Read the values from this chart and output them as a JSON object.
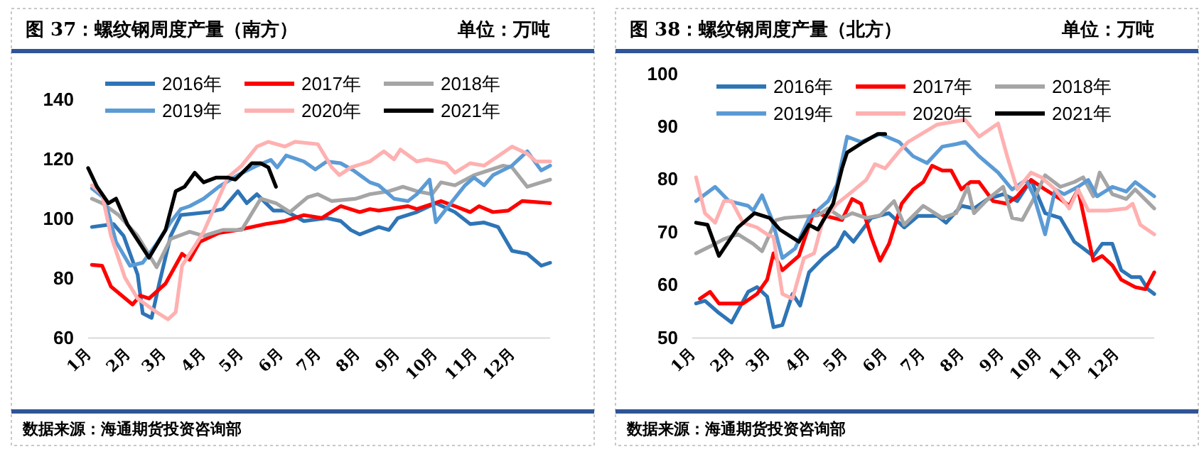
{
  "chart_data": [
    {
      "type": "line",
      "title": "图 37：螺纹钢周度产量（南方）",
      "subtitle": "单位：万吨",
      "annotations": [
        "数据来源：海通期货投资咨询部"
      ],
      "legend": "top",
      "grid": false,
      "xlim": [
        "--01-01",
        "--12-31"
      ],
      "xticks": [
        {
          "value": "--01-01",
          "label": "1月"
        },
        {
          "value": "--02-01",
          "label": "2月"
        },
        {
          "value": "--03-01",
          "label": "3月"
        },
        {
          "value": "--04-01",
          "label": "4月"
        },
        {
          "value": "--05-01",
          "label": "5月"
        },
        {
          "value": "--06-01",
          "label": "6月"
        },
        {
          "value": "--07-01",
          "label": "7月"
        },
        {
          "value": "--08-01",
          "label": "8月"
        },
        {
          "value": "--09-01",
          "label": "9月"
        },
        {
          "value": "--10-01",
          "label": "10月"
        },
        {
          "value": "--11-01",
          "label": "11月"
        },
        {
          "value": "--12-01",
          "label": "12月"
        }
      ],
      "ylim": [
        60,
        140
      ],
      "yticks": [
        60,
        80,
        100,
        120,
        140
      ],
      "series": [
        {
          "name": "2016年",
          "color": "#2e75b6",
          "x": [
            "--01-04",
            "--01-21",
            "--01-29",
            "--02-09",
            "--02-13",
            "--02-20",
            "--02-26",
            "--03-07",
            "--03-15",
            "--04-06",
            "--04-17",
            "--04-29",
            "--05-06",
            "--05-14",
            "--05-27",
            "--06-05",
            "--06-20",
            "--07-08",
            "--07-19",
            "--07-27",
            "--08-03",
            "--08-18",
            "--08-26",
            "--09-02",
            "--09-17",
            "--10-02",
            "--10-17",
            "--10-29",
            "--11-09",
            "--11-20",
            "--12-01",
            "--12-13",
            "--12-24",
            "--12-31"
          ],
          "values": [
            97,
            98,
            94,
            81,
            68,
            66.5,
            78,
            94,
            101,
            102,
            103,
            109,
            105,
            108,
            102.5,
            102.5,
            99,
            100,
            99,
            96,
            94.5,
            97,
            96,
            100,
            102,
            105,
            102,
            98,
            98.5,
            97,
            89,
            88,
            84,
            85
          ]
        },
        {
          "name": "2017年",
          "color": "#ff0000",
          "x": [
            "--01-04",
            "--01-12",
            "--01-19",
            "--02-05",
            "--02-11",
            "--02-18",
            "--03-03",
            "--03-16",
            "--03-22",
            "--03-30",
            "--04-14",
            "--04-29",
            "--05-21",
            "--06-05",
            "--06-20",
            "--07-04",
            "--07-19",
            "--08-03",
            "--08-11",
            "--08-18",
            "--09-10",
            "--09-17",
            "--10-06",
            "--10-17",
            "--10-29",
            "--11-05",
            "--11-16",
            "--11-28",
            "--12-09",
            "--12-31"
          ],
          "values": [
            84.3,
            84,
            77,
            71,
            74,
            73,
            78,
            88,
            86,
            92,
            95,
            96,
            98,
            99,
            101,
            100,
            104,
            102,
            103,
            102.5,
            104,
            103,
            105.7,
            104,
            102,
            104,
            102,
            102.5,
            105.7,
            105
          ]
        },
        {
          "name": "2018年",
          "color": "#a5a5a5",
          "x": [
            "--01-04",
            "--01-12",
            "--01-25",
            "--02-09",
            "--02-24",
            "--03-07",
            "--03-22",
            "--04-02",
            "--04-17",
            "--05-02",
            "--05-17",
            "--05-29",
            "--06-09",
            "--06-23",
            "--07-01",
            "--07-12",
            "--07-31",
            "--08-11",
            "--08-26",
            "--09-06",
            "--09-17",
            "--09-29",
            "--10-06",
            "--10-17",
            "--11-01",
            "--11-24",
            "--12-01",
            "--12-13",
            "--12-31"
          ],
          "values": [
            106.5,
            105,
            101,
            94,
            83.5,
            93,
            95.4,
            94,
            96,
            96,
            106.5,
            105,
            102,
            107,
            108,
            105.7,
            106.5,
            108,
            109,
            110.5,
            109,
            108,
            112,
            111,
            114.4,
            117.6,
            117,
            110.5,
            112.9
          ]
        },
        {
          "name": "2019年",
          "color": "#5b9bd5",
          "x": [
            "--01-04",
            "--01-14",
            "--01-23",
            "--02-03",
            "--02-13",
            "--02-24",
            "--03-07",
            "--03-15",
            "--03-22",
            "--04-02",
            "--04-14",
            "--04-29",
            "--05-14",
            "--05-25",
            "--05-30",
            "--06-06",
            "--06-20",
            "--06-29",
            "--07-08",
            "--07-19",
            "--07-29",
            "--08-11",
            "--08-18",
            "--08-30",
            "--09-10",
            "--09-17",
            "--09-27",
            "--10-02",
            "--10-10",
            "--10-25",
            "--11-01",
            "--11-09",
            "--11-16",
            "--12-01",
            "--12-13",
            "--12-24",
            "--12-31"
          ],
          "values": [
            110,
            106.5,
            92,
            84,
            85,
            91.4,
            98.6,
            103,
            104,
            106.5,
            110.5,
            114.4,
            117.6,
            119.5,
            117,
            121,
            119,
            116.3,
            119,
            118.4,
            116,
            112,
            111,
            106.5,
            105.7,
            108,
            112.9,
            98.6,
            103,
            111,
            113.6,
            111,
            114.4,
            117.6,
            122.4,
            116,
            117.6
          ]
        },
        {
          "name": "2020年",
          "color": "#ffb0b0",
          "x": [
            "--01-04",
            "--01-12",
            "--01-19",
            "--01-30",
            "--02-09",
            "--02-24",
            "--03-05",
            "--03-11",
            "--03-16",
            "--03-26",
            "--04-02",
            "--04-10",
            "--04-21",
            "--05-02",
            "--05-14",
            "--05-23",
            "--06-05",
            "--06-13",
            "--07-01",
            "--07-12",
            "--07-18",
            "--07-27",
            "--08-11",
            "--08-22",
            "--08-30",
            "--09-04",
            "--09-17",
            "--09-25",
            "--10-10",
            "--10-17",
            "--10-29",
            "--11-09",
            "--11-20",
            "--12-01",
            "--12-13",
            "--12-20",
            "--12-31"
          ],
          "values": [
            111,
            108,
            94,
            80,
            73,
            68.4,
            66,
            68.4,
            84,
            90.6,
            95.4,
            103,
            113.6,
            117.6,
            124,
            125.6,
            124,
            125.6,
            124.8,
            117,
            114.4,
            117,
            119,
            122.4,
            119.7,
            123,
            119,
            119.7,
            118.4,
            115.2,
            118.4,
            117.6,
            120.8,
            124,
            121.6,
            119,
            119
          ]
        },
        {
          "name": "2021年",
          "color": "#000000",
          "x": [
            "--01-01",
            "--01-08",
            "--01-17",
            "--01-23",
            "--02-01",
            "--02-18",
            "--03-03",
            "--03-11",
            "--03-18",
            "--03-26",
            "--04-02",
            "--04-12",
            "--04-21",
            "--04-27",
            "--05-10",
            "--05-17",
            "--05-23",
            "--05-29"
          ],
          "values": [
            116.8,
            110.5,
            105,
            106.5,
            97.8,
            86.7,
            96,
            109,
            110.5,
            115.2,
            112,
            113.6,
            113.6,
            112.9,
            118.4,
            118.4,
            117,
            110.5
          ]
        }
      ]
    },
    {
      "type": "line",
      "title": "图 38：螺纹钢周度产量（北方）",
      "subtitle": "单位：万吨",
      "annotations": [
        "数据来源：海通期货投资咨询部"
      ],
      "legend": "top",
      "grid": false,
      "xlim": [
        "--01-01",
        "--12-31"
      ],
      "xticks": [
        {
          "value": "--01-01",
          "label": "1月"
        },
        {
          "value": "--02-01",
          "label": "2月"
        },
        {
          "value": "--03-01",
          "label": "3月"
        },
        {
          "value": "--04-01",
          "label": "4月"
        },
        {
          "value": "--05-01",
          "label": "5月"
        },
        {
          "value": "--06-01",
          "label": "6月"
        },
        {
          "value": "--07-01",
          "label": "7月"
        },
        {
          "value": "--08-01",
          "label": "8月"
        },
        {
          "value": "--09-01",
          "label": "9月"
        },
        {
          "value": "--10-01",
          "label": "10月"
        },
        {
          "value": "--11-01",
          "label": "11月"
        },
        {
          "value": "--12-01",
          "label": "12月"
        }
      ],
      "ylim": [
        50,
        100
      ],
      "yticks": [
        50,
        60,
        70,
        80,
        90,
        100
      ],
      "series": [
        {
          "name": "2016年",
          "color": "#2e75b6",
          "x": [
            "--01-04",
            "--01-11",
            "--01-22",
            "--02-01",
            "--02-14",
            "--02-21",
            "--03-01",
            "--03-06",
            "--03-13",
            "--03-21",
            "--03-27",
            "--04-03",
            "--04-14",
            "--04-25",
            "--05-01",
            "--05-08",
            "--05-22",
            "--06-05",
            "--06-17",
            "--06-28",
            "--07-13",
            "--07-20",
            "--08-01",
            "--08-11",
            "--08-22",
            "--09-03",
            "--09-14",
            "--09-25",
            "--10-06",
            "--10-18",
            "--10-29",
            "--11-13",
            "--11-20",
            "--11-28",
            "--12-05",
            "--12-13",
            "--12-20",
            "--12-26",
            "--12-31"
          ],
          "values": [
            56.4,
            56.9,
            54.6,
            52.8,
            58.6,
            59.5,
            57.7,
            51.9,
            52.3,
            58.2,
            56,
            62.3,
            65,
            67.2,
            69.9,
            68.1,
            72.6,
            73.5,
            70.8,
            73,
            73,
            71.7,
            74.9,
            74.4,
            76.2,
            77.1,
            75.8,
            79.8,
            73.5,
            72.6,
            68.1,
            65.4,
            67.7,
            67.7,
            62.7,
            61.4,
            61.4,
            59.1,
            58.2
          ]
        },
        {
          "name": "2017年",
          "color": "#ff0000",
          "x": [
            "--01-07",
            "--01-15",
            "--01-22",
            "--02-10",
            "--02-21",
            "--03-01",
            "--03-06",
            "--03-13",
            "--03-26",
            "--04-07",
            "--04-14",
            "--04-29",
            "--05-07",
            "--05-14",
            "--05-22",
            "--05-29",
            "--06-05",
            "--06-15",
            "--06-24",
            "--07-02",
            "--07-09",
            "--07-17",
            "--07-24",
            "--08-01",
            "--08-08",
            "--08-15",
            "--08-26",
            "--09-06",
            "--09-14",
            "--09-25",
            "--10-06",
            "--10-18",
            "--10-25",
            "--11-01",
            "--11-13",
            "--11-20",
            "--11-28",
            "--12-05",
            "--12-16",
            "--12-24",
            "--12-31"
          ],
          "values": [
            57.3,
            58.6,
            56.4,
            56.4,
            58.2,
            60.9,
            65.9,
            62.7,
            65.4,
            74,
            73.1,
            72.2,
            76.2,
            75.3,
            69,
            64.5,
            67.7,
            75.3,
            78,
            79.4,
            82.5,
            81.6,
            81.6,
            78,
            79.4,
            79.4,
            75.8,
            75.3,
            76.7,
            79.8,
            78,
            76.2,
            74.9,
            78,
            64.5,
            65.4,
            63.6,
            60.9,
            59.5,
            59.1,
            62.3
          ]
        },
        {
          "name": "2018年",
          "color": "#a5a5a5",
          "x": [
            "--01-04",
            "--01-15",
            "--01-26",
            "--02-06",
            "--02-18",
            "--02-25",
            "--03-08",
            "--03-15",
            "--03-30",
            "--04-10",
            "--04-18",
            "--04-29",
            "--05-07",
            "--05-18",
            "--05-29",
            "--06-09",
            "--06-17",
            "--07-02",
            "--07-17",
            "--07-28",
            "--08-06",
            "--08-11",
            "--08-22",
            "--09-03",
            "--09-10",
            "--09-18",
            "--09-29",
            "--10-06",
            "--10-18",
            "--10-29",
            "--11-05",
            "--11-13",
            "--11-18",
            "--11-28",
            "--12-09",
            "--12-16",
            "--12-31"
          ],
          "values": [
            65.9,
            67.2,
            68.6,
            69.5,
            67.7,
            66.3,
            72.2,
            72.6,
            72.9,
            73.1,
            74.4,
            72.6,
            73.5,
            72.6,
            73.1,
            75.8,
            71.3,
            74.9,
            72.6,
            73.5,
            78.5,
            73.5,
            76.2,
            78.5,
            72.6,
            72.2,
            77.1,
            80.7,
            78.5,
            79.4,
            80.3,
            76.7,
            81.2,
            77.1,
            76.2,
            78,
            74.4
          ]
        },
        {
          "name": "2019年",
          "color": "#5b9bd5",
          "x": [
            "--01-04",
            "--01-19",
            "--01-30",
            "--02-14",
            "--02-18",
            "--02-25",
            "--03-05",
            "--03-13",
            "--03-23",
            "--04-03",
            "--04-18",
            "--04-25",
            "--05-03",
            "--05-14",
            "--05-29",
            "--06-13",
            "--06-24",
            "--07-05",
            "--07-17",
            "--07-28",
            "--08-04",
            "--08-15",
            "--08-30",
            "--09-10",
            "--09-21",
            "--09-27",
            "--10-06",
            "--10-14",
            "--10-21",
            "--11-01",
            "--11-09",
            "--11-16",
            "--11-28",
            "--12-09",
            "--12-16",
            "--12-31"
          ],
          "values": [
            75.8,
            78.5,
            75.8,
            74.9,
            74,
            76.9,
            72.2,
            65,
            66.8,
            72.6,
            75.8,
            78.9,
            88,
            87,
            88.5,
            87,
            84.3,
            83,
            86.1,
            86.6,
            87,
            84.3,
            81.2,
            78,
            79.8,
            76.9,
            69.5,
            78,
            77.1,
            78.5,
            79.8,
            76.7,
            78.5,
            77.6,
            79.4,
            76.7
          ]
        },
        {
          "name": "2020年",
          "color": "#ffb0b0",
          "x": [
            "--01-04",
            "--01-11",
            "--01-19",
            "--01-26",
            "--02-01",
            "--02-10",
            "--02-21",
            "--03-01",
            "--03-06",
            "--03-13",
            "--03-21",
            "--03-30",
            "--04-07",
            "--04-14",
            "--04-25",
            "--05-07",
            "--05-18",
            "--05-25",
            "--06-02",
            "--06-13",
            "--06-20",
            "--07-13",
            "--08-04",
            "--08-15",
            "--08-30",
            "--09-06",
            "--09-14",
            "--09-25",
            "--10-03",
            "--10-14",
            "--10-25",
            "--11-01",
            "--11-09",
            "--11-24",
            "--12-09",
            "--12-14",
            "--12-20",
            "--12-31"
          ],
          "values": [
            80.3,
            73.5,
            71.7,
            75.8,
            75.8,
            71.7,
            70.8,
            69.5,
            69,
            58.2,
            57.3,
            65,
            65.9,
            72.2,
            75.3,
            77.6,
            79.8,
            82.8,
            82,
            85.2,
            87,
            90.3,
            91.2,
            88,
            90.5,
            84.4,
            78,
            81.2,
            80.3,
            78,
            74.4,
            78,
            74,
            74,
            74.4,
            75.3,
            71.3,
            69.5
          ]
        },
        {
          "name": "2021年",
          "color": "#000000",
          "x": [
            "--01-04",
            "--01-13",
            "--01-22",
            "--02-06",
            "--02-19",
            "--03-03",
            "--03-11",
            "--03-26",
            "--04-03",
            "--04-10",
            "--04-22",
            "--04-29",
            "--05-03",
            "--05-16",
            "--05-27",
            "--06-02"
          ],
          "values": [
            71.7,
            71.3,
            65.4,
            70.8,
            73.5,
            72.6,
            70.4,
            68.1,
            71.3,
            70.4,
            75.3,
            82,
            85,
            87,
            88.5,
            88.5
          ]
        }
      ]
    }
  ]
}
